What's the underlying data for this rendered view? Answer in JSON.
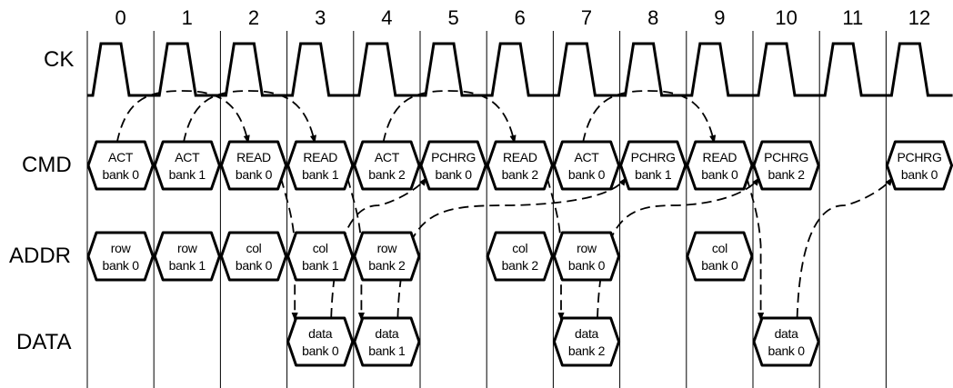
{
  "cycles": [
    "0",
    "1",
    "2",
    "3",
    "4",
    "5",
    "6",
    "7",
    "8",
    "9",
    "10",
    "11",
    "12"
  ],
  "signals": {
    "ck": "CK",
    "cmd": "CMD",
    "addr": "ADDR",
    "data": "DATA"
  },
  "cmd_boxes": [
    {
      "cycle": 0,
      "l1": "ACT",
      "l2": "bank 0"
    },
    {
      "cycle": 1,
      "l1": "ACT",
      "l2": "bank 1"
    },
    {
      "cycle": 2,
      "l1": "READ",
      "l2": "bank 0"
    },
    {
      "cycle": 3,
      "l1": "READ",
      "l2": "bank 1"
    },
    {
      "cycle": 4,
      "l1": "ACT",
      "l2": "bank 2"
    },
    {
      "cycle": 5,
      "l1": "PCHRG",
      "l2": "bank 0"
    },
    {
      "cycle": 6,
      "l1": "READ",
      "l2": "bank 2"
    },
    {
      "cycle": 7,
      "l1": "ACT",
      "l2": "bank 0"
    },
    {
      "cycle": 8,
      "l1": "PCHRG",
      "l2": "bank 1"
    },
    {
      "cycle": 9,
      "l1": "READ",
      "l2": "bank 0"
    },
    {
      "cycle": 10,
      "l1": "PCHRG",
      "l2": "bank 2"
    },
    {
      "cycle": 12,
      "l1": "PCHRG",
      "l2": "bank 0"
    }
  ],
  "addr_boxes": [
    {
      "cycle": 0,
      "l1": "row",
      "l2": "bank 0"
    },
    {
      "cycle": 1,
      "l1": "row",
      "l2": "bank 1"
    },
    {
      "cycle": 2,
      "l1": "col",
      "l2": "bank 0"
    },
    {
      "cycle": 3,
      "l1": "col",
      "l2": "bank 1"
    },
    {
      "cycle": 4,
      "l1": "row",
      "l2": "bank 2"
    },
    {
      "cycle": 6,
      "l1": "col",
      "l2": "bank 2"
    },
    {
      "cycle": 7,
      "l1": "row",
      "l2": "bank 0"
    },
    {
      "cycle": 9,
      "l1": "col",
      "l2": "bank 0"
    }
  ],
  "data_boxes": [
    {
      "cycle": 3,
      "l1": "data",
      "l2": "bank 0"
    },
    {
      "cycle": 4,
      "l1": "data",
      "l2": "bank 1"
    },
    {
      "cycle": 7,
      "l1": "data",
      "l2": "bank 2"
    },
    {
      "cycle": 10,
      "l1": "data",
      "l2": "bank 0"
    }
  ],
  "dependencies": [
    {
      "from": "cmd-0",
      "to": "cmd-2"
    },
    {
      "from": "cmd-1",
      "to": "cmd-3"
    },
    {
      "from": "cmd-4",
      "to": "cmd-6"
    },
    {
      "from": "cmd-7",
      "to": "cmd-9"
    },
    {
      "from": "cmd-2",
      "to": "data-3"
    },
    {
      "from": "cmd-3",
      "to": "data-4"
    },
    {
      "from": "cmd-6",
      "to": "data-7"
    },
    {
      "from": "cmd-9",
      "to": "data-10"
    },
    {
      "from": "data-3",
      "to": "cmd-5"
    },
    {
      "from": "data-4",
      "to": "cmd-8"
    },
    {
      "from": "data-7",
      "to": "cmd-10"
    },
    {
      "from": "data-10",
      "to": "cmd-12"
    }
  ]
}
